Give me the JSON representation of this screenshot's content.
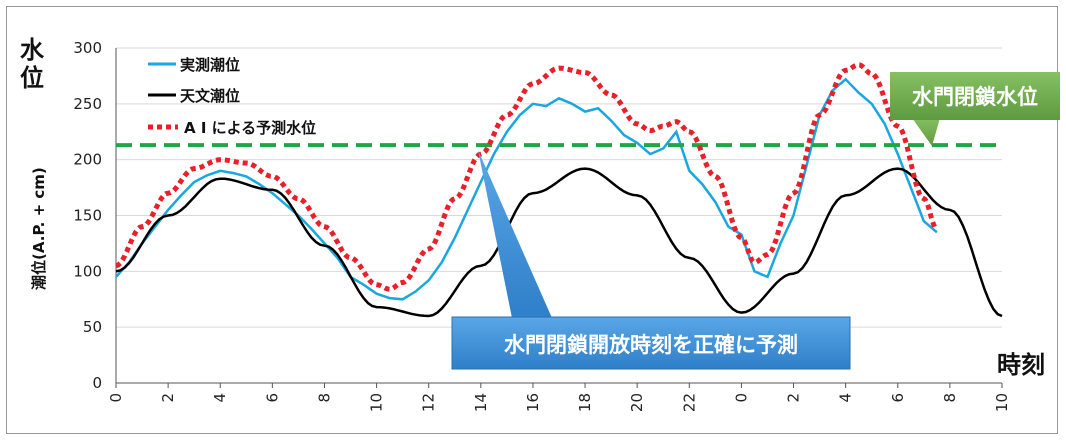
{
  "chart_data": {
    "type": "line",
    "ylabel": "潮位(A.P. + cm)",
    "ylabel_corner": "水位",
    "xlabel": "時刻",
    "ylim": [
      0,
      300
    ],
    "yticks": [
      0,
      50,
      100,
      150,
      200,
      250,
      300
    ],
    "xtick_labels": [
      "0",
      "2",
      "4",
      "6",
      "8",
      "10",
      "12",
      "14",
      "16",
      "18",
      "20",
      "22",
      "0",
      "2",
      "4",
      "6",
      "8",
      "10"
    ],
    "grid": "horizontal",
    "legend_position": "top-left",
    "series": [
      {
        "name": "実測潮位",
        "color": "#1aa7e0",
        "x": [
          0,
          0.5,
          1,
          1.5,
          2,
          2.5,
          3,
          3.5,
          4,
          4.5,
          5,
          5.5,
          6,
          6.5,
          7,
          7.5,
          8,
          8.5,
          9,
          9.5,
          10,
          10.5,
          11,
          11.5,
          12,
          12.5,
          13,
          13.5,
          14,
          14.5,
          15,
          15.5,
          16,
          16.5,
          17,
          17.5,
          18,
          18.5,
          19,
          19.5,
          20,
          20.5,
          21,
          21.5,
          22,
          22.5,
          23,
          23.5,
          24,
          24.5,
          25,
          25.5,
          26,
          26.5,
          27,
          27.5,
          28,
          28.5,
          29,
          29.5,
          30,
          30.5,
          31,
          31.5
        ],
        "y": [
          95,
          108,
          125,
          140,
          155,
          168,
          180,
          186,
          190,
          188,
          185,
          178,
          170,
          160,
          150,
          138,
          125,
          112,
          95,
          88,
          80,
          76,
          75,
          82,
          92,
          108,
          130,
          155,
          180,
          205,
          225,
          240,
          250,
          248,
          255,
          250,
          243,
          246,
          235,
          222,
          215,
          205,
          210,
          225,
          190,
          178,
          162,
          140,
          133,
          100,
          95,
          125,
          150,
          195,
          240,
          262,
          272,
          260,
          250,
          232,
          205,
          175,
          145,
          135
        ]
      },
      {
        "name": "天文潮位",
        "color": "#000000",
        "type": "sinusoid_reference",
        "x": [
          0,
          2,
          4,
          6,
          8,
          10,
          12,
          14,
          16,
          18,
          20,
          22,
          24,
          26,
          28,
          30,
          32,
          34
        ],
        "y": [
          100,
          150,
          183,
          173,
          123,
          68,
          60,
          105,
          170,
          192,
          168,
          112,
          63,
          98,
          168,
          192,
          155,
          60
        ]
      },
      {
        "name": "A I による予測水位",
        "color": "#e8202a",
        "x": [
          0,
          1,
          2,
          3,
          4,
          5,
          6,
          7,
          8,
          9,
          10,
          10.5,
          11,
          12,
          13,
          14,
          15,
          16,
          17,
          18,
          19,
          20,
          20.5,
          21,
          21.5,
          22,
          23,
          24,
          24.5,
          25,
          26,
          27,
          28,
          28.5,
          29,
          30,
          31,
          31.5
        ],
        "y": [
          105,
          140,
          170,
          192,
          200,
          197,
          185,
          165,
          140,
          112,
          88,
          84,
          90,
          120,
          165,
          205,
          240,
          268,
          282,
          278,
          258,
          232,
          226,
          230,
          234,
          225,
          185,
          130,
          108,
          115,
          170,
          240,
          280,
          285,
          277,
          230,
          165,
          138
        ]
      }
    ],
    "threshold": {
      "name": "水門閉鎖水位",
      "value": 213,
      "color": "#1ea844"
    },
    "annotations": {
      "callout_text": "水門閉鎖開放時刻を正確に予測",
      "callout_color": "#3c8fd5",
      "threshold_label_color": "#6aa84f"
    }
  }
}
